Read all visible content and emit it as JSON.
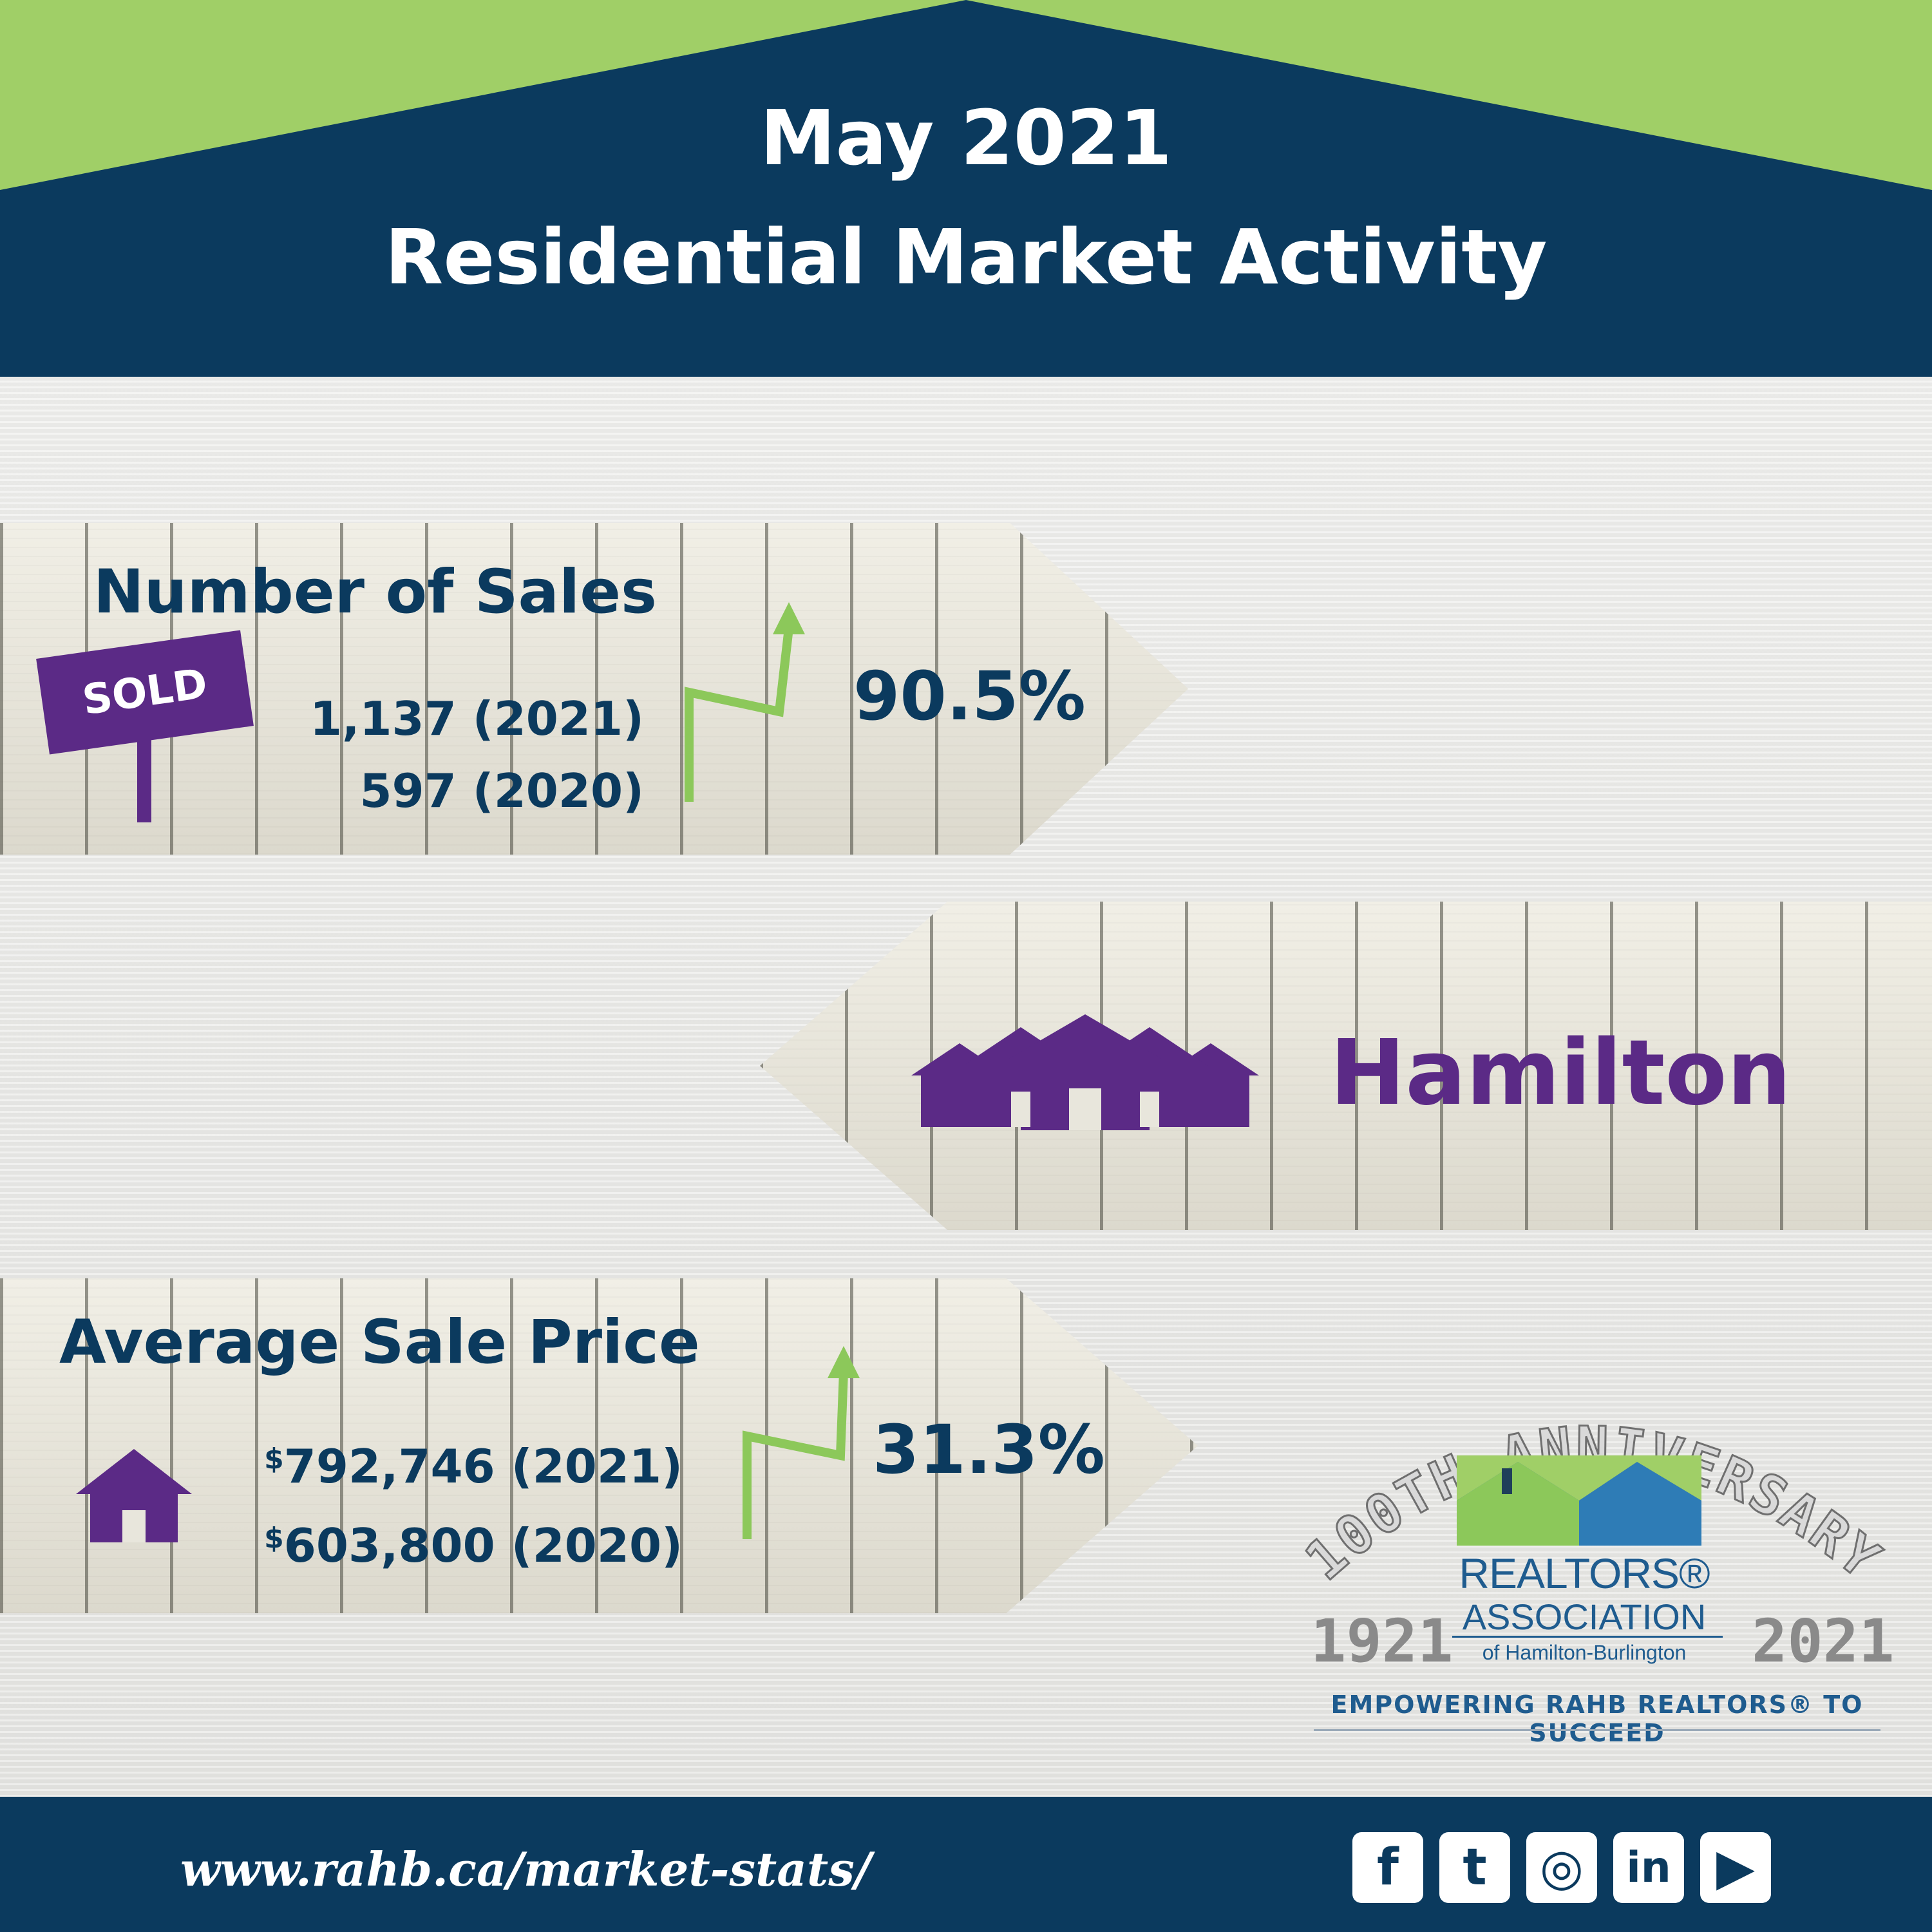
{
  "header": {
    "title_line_1": "May 2021",
    "title_line_2": "Residential Market Activity"
  },
  "colors": {
    "navy": "#0b3a5e",
    "green": "#a0cf67",
    "purple": "#5b2a86",
    "arrow_green": "#8cc85a"
  },
  "sales": {
    "heading": "Number of Sales",
    "sign_label": "SOLD",
    "value_2021": "1,137 (2021)",
    "value_2020": "597 (2020)",
    "change": "90.5%",
    "trend_icon": "up-arrow-icon"
  },
  "city": {
    "name": "Hamilton",
    "icon": "houses-icon"
  },
  "price": {
    "heading": "Average Sale Price",
    "currency_symbol": "$",
    "value_2021": "792,746 (2021)",
    "value_2020": "603,800 (2020)",
    "change": "31.3%",
    "icon": "house-icon",
    "trend_icon": "up-arrow-icon"
  },
  "logo": {
    "anniversary_text": "100TH ANNIVERSARY",
    "year_start": "1921",
    "year_end": "2021",
    "org_line_1": "REALTORS®",
    "org_line_2": "ASSOCIATION",
    "org_line_3": "of Hamilton-Burlington",
    "tagline": "EMPOWERING RAHB REALTORS® TO SUCCEED"
  },
  "footer": {
    "url": "www.rahb.ca/market-stats/",
    "social": [
      {
        "icon": "facebook-icon",
        "glyph": "f"
      },
      {
        "icon": "twitter-icon",
        "glyph": "t"
      },
      {
        "icon": "instagram-icon",
        "glyph": "◎"
      },
      {
        "icon": "linkedin-icon",
        "glyph": "in"
      },
      {
        "icon": "youtube-icon",
        "glyph": "▶"
      }
    ]
  }
}
